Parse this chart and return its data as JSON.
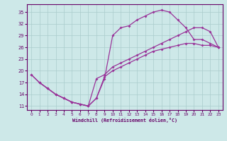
{
  "xlabel": "Windchill (Refroidissement éolien,°C)",
  "bg_color": "#cde8e8",
  "line_color": "#993399",
  "grid_color": "#aacccc",
  "xlim": [
    -0.5,
    23.5
  ],
  "ylim": [
    10,
    37
  ],
  "xticks": [
    0,
    1,
    2,
    3,
    4,
    5,
    6,
    7,
    8,
    9,
    10,
    11,
    12,
    13,
    14,
    15,
    16,
    17,
    18,
    19,
    20,
    21,
    22,
    23
  ],
  "yticks": [
    11,
    14,
    17,
    20,
    23,
    26,
    29,
    32,
    35
  ],
  "line1_x": [
    0,
    1,
    2,
    3,
    4,
    5,
    6,
    7,
    8,
    9,
    10,
    11,
    12,
    13,
    14,
    15,
    16,
    17,
    18,
    19,
    20,
    21,
    22,
    23
  ],
  "line1_y": [
    19,
    17,
    15.5,
    14,
    13,
    12,
    11.5,
    11,
    13,
    18,
    29,
    31,
    31.5,
    33,
    34,
    35,
    35.5,
    35,
    33,
    31,
    28,
    28,
    27,
    26
  ],
  "line2_x": [
    1,
    2,
    3,
    4,
    5,
    6,
    7,
    8,
    9,
    10,
    11,
    12,
    13,
    14,
    15,
    16,
    17,
    18,
    19,
    20,
    21,
    22,
    23
  ],
  "line2_y": [
    17,
    15.5,
    14,
    13,
    12,
    11.5,
    11,
    18,
    19,
    21,
    22,
    23,
    24,
    25,
    26,
    27,
    28,
    29,
    30,
    31,
    31,
    30,
    26
  ],
  "line3_x": [
    0,
    1,
    2,
    3,
    4,
    5,
    6,
    7,
    8,
    9,
    10,
    11,
    12,
    13,
    14,
    15,
    16,
    17,
    18,
    19,
    20,
    21,
    22,
    23
  ],
  "line3_y": [
    19,
    17,
    15.5,
    14,
    13,
    12,
    11.5,
    11,
    13,
    18.5,
    20,
    21,
    22,
    23,
    24,
    25,
    25.5,
    26,
    26.5,
    27,
    27,
    26.5,
    26.5,
    26
  ]
}
